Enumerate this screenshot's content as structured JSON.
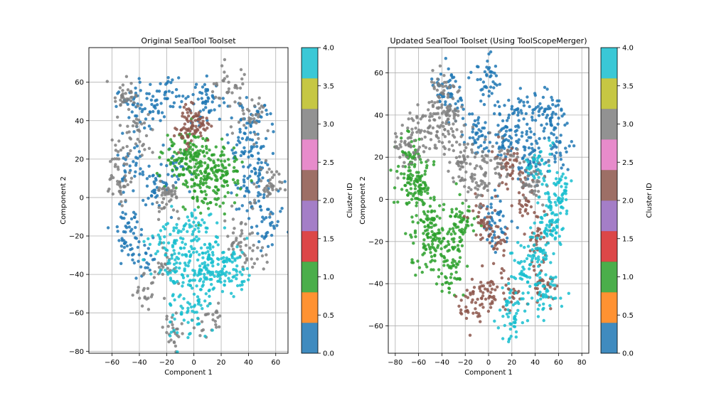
{
  "chart_data": [
    {
      "type": "scatter",
      "title": "Original SealTool Toolset",
      "xlabel": "Component 1",
      "ylabel": "Component 2",
      "xlim": [
        -77,
        69
      ],
      "ylim": [
        -81,
        78
      ],
      "xticks": [
        -60,
        -40,
        -20,
        0,
        20,
        40,
        60
      ],
      "yticks": [
        -80,
        -60,
        -40,
        -20,
        0,
        20,
        40,
        60
      ],
      "xtick_labels": [
        "−60",
        "−40",
        "−20",
        "0",
        "20",
        "40",
        "60"
      ],
      "ytick_labels": [
        "−80",
        "−60",
        "−40",
        "−20",
        "0",
        "20",
        "40",
        "60"
      ],
      "grid": true,
      "colorbar": {
        "label": "Cluster ID",
        "range": [
          0,
          4
        ],
        "ticks": [
          "0.0",
          "0.5",
          "1.0",
          "1.5",
          "2.0",
          "2.5",
          "3.0",
          "3.5",
          "4.0"
        ],
        "colors": [
          "#1f77b4",
          "#ff7f0e",
          "#2ca02c",
          "#d62728",
          "#9467bd",
          "#8c564b",
          "#e377c2",
          "#7f7f7f",
          "#bcbd22",
          "#17becf"
        ]
      },
      "clusters": [
        {
          "id": 0,
          "color": "#1f77b4",
          "centers": [
            [
              -45,
              48
            ],
            [
              -30,
              50
            ],
            [
              -15,
              55
            ],
            [
              -45,
              15
            ],
            [
              -30,
              5
            ],
            [
              -15,
              15
            ],
            [
              35,
              25
            ],
            [
              50,
              15
            ],
            [
              45,
              40
            ],
            [
              -50,
              -15
            ],
            [
              55,
              -15
            ],
            [
              -40,
              -30
            ],
            [
              40,
              0
            ],
            [
              10,
              50
            ]
          ],
          "spread": 8,
          "count": 480
        },
        {
          "id": 1,
          "color": "#2ca02c",
          "centers": [
            [
              0,
              25
            ],
            [
              15,
              15
            ],
            [
              5,
              5
            ],
            [
              25,
              10
            ],
            [
              -10,
              20
            ]
          ],
          "spread": 9,
          "count": 300
        },
        {
          "id": 2,
          "color": "#8c564b",
          "centers": [
            [
              -2,
              42
            ],
            [
              5,
              36
            ],
            [
              -6,
              34
            ]
          ],
          "spread": 5,
          "count": 90
        },
        {
          "id": 3,
          "color": "#7f7f7f",
          "centers": [
            [
              -50,
              52
            ],
            [
              -55,
              5
            ],
            [
              25,
              58
            ],
            [
              40,
              40
            ],
            [
              55,
              5
            ],
            [
              45,
              -30
            ],
            [
              -35,
              -50
            ],
            [
              -15,
              -70
            ],
            [
              -20,
              -35
            ],
            [
              10,
              -65
            ],
            [
              -40,
              35
            ],
            [
              -55,
              20
            ],
            [
              30,
              -20
            ],
            [
              -20,
              0
            ]
          ],
          "spread": 7,
          "count": 420
        },
        {
          "id": 4,
          "color": "#17becf",
          "centers": [
            [
              0,
              -15
            ],
            [
              10,
              -30
            ],
            [
              -10,
              -35
            ],
            [
              5,
              -45
            ],
            [
              -5,
              -60
            ],
            [
              20,
              -40
            ],
            [
              -20,
              -25
            ],
            [
              30,
              -35
            ]
          ],
          "spread": 9,
          "count": 380
        }
      ]
    },
    {
      "type": "scatter",
      "title": "Updated SealTool Toolset (Using ToolScopeMerger)",
      "xlabel": "Component 1",
      "ylabel": "Component 2",
      "xlim": [
        -86,
        86
      ],
      "ylim": [
        -73,
        72
      ],
      "xticks": [
        -80,
        -60,
        -40,
        -20,
        0,
        20,
        40,
        60,
        80
      ],
      "yticks": [
        -60,
        -40,
        -20,
        0,
        20,
        40,
        60
      ],
      "xtick_labels": [
        "−80",
        "−60",
        "−40",
        "−20",
        "0",
        "20",
        "40",
        "60",
        "80"
      ],
      "ytick_labels": [
        "−60",
        "−40",
        "−20",
        "0",
        "20",
        "40",
        "60"
      ],
      "grid": true,
      "colorbar": {
        "label": "Cluster ID",
        "range": [
          0,
          4
        ],
        "ticks": [
          "0.0",
          "0.5",
          "1.0",
          "1.5",
          "2.0",
          "2.5",
          "3.0",
          "3.5",
          "4.0"
        ],
        "colors": [
          "#1f77b4",
          "#ff7f0e",
          "#2ca02c",
          "#d62728",
          "#9467bd",
          "#8c564b",
          "#e377c2",
          "#7f7f7f",
          "#bcbd22",
          "#17becf"
        ]
      },
      "clusters": [
        {
          "id": 0,
          "color": "#1f77b4",
          "centers": [
            [
              -35,
              50
            ],
            [
              0,
              55
            ],
            [
              25,
              40
            ],
            [
              50,
              42
            ],
            [
              35,
              20
            ],
            [
              15,
              30
            ],
            [
              60,
              25
            ],
            [
              -10,
              30
            ],
            [
              5,
              -10
            ]
          ],
          "spread": 8,
          "count": 420
        },
        {
          "id": 1,
          "color": "#2ca02c",
          "centers": [
            [
              -60,
              5
            ],
            [
              -45,
              -15
            ],
            [
              -35,
              -30
            ],
            [
              -55,
              -20
            ],
            [
              -25,
              -10
            ],
            [
              -65,
              15
            ]
          ],
          "spread": 9,
          "count": 380
        },
        {
          "id": 2,
          "color": "#8c564b",
          "centers": [
            [
              -5,
              -10
            ],
            [
              10,
              -20
            ],
            [
              30,
              0
            ],
            [
              40,
              -20
            ],
            [
              20,
              -45
            ],
            [
              0,
              -45
            ],
            [
              45,
              -40
            ],
            [
              15,
              15
            ],
            [
              -15,
              -50
            ]
          ],
          "spread": 7,
          "count": 300
        },
        {
          "id": 3,
          "color": "#7f7f7f",
          "centers": [
            [
              -60,
              30
            ],
            [
              -45,
              35
            ],
            [
              -25,
              20
            ],
            [
              -10,
              10
            ],
            [
              -40,
              50
            ],
            [
              -70,
              25
            ],
            [
              40,
              10
            ],
            [
              10,
              20
            ],
            [
              -30,
              40
            ]
          ],
          "spread": 8,
          "count": 380
        },
        {
          "id": 4,
          "color": "#17becf",
          "centers": [
            [
              45,
              -25
            ],
            [
              55,
              -10
            ],
            [
              30,
              -35
            ],
            [
              60,
              5
            ],
            [
              50,
              -45
            ],
            [
              20,
              -55
            ],
            [
              40,
              15
            ]
          ],
          "spread": 8,
          "count": 330
        }
      ]
    }
  ]
}
